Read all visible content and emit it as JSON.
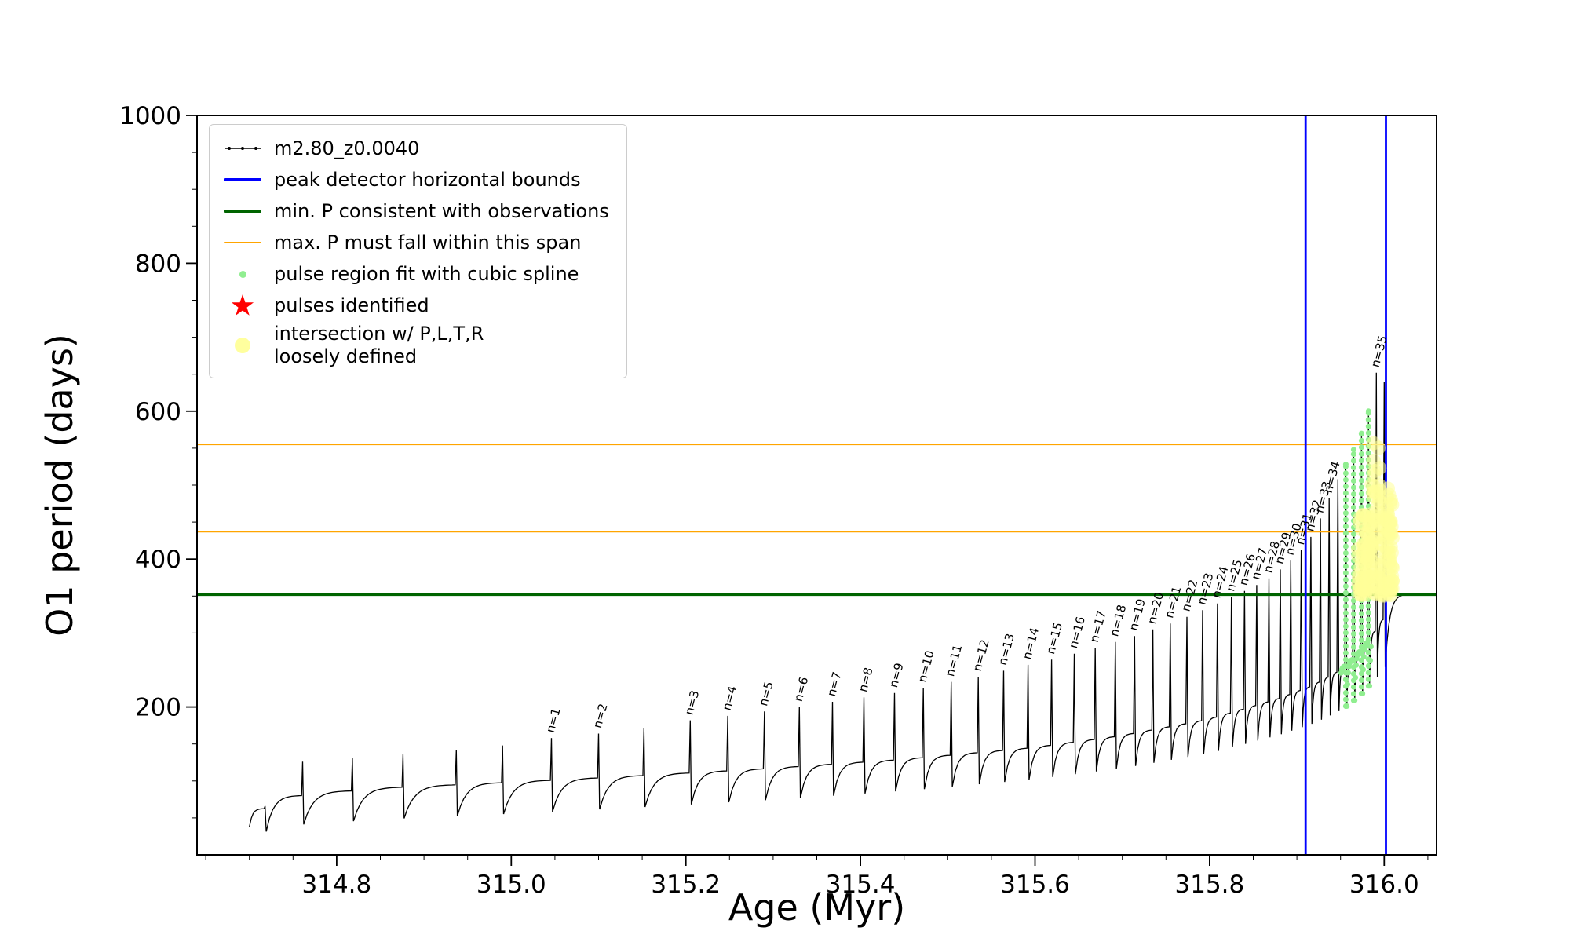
{
  "chart_data": {
    "type": "line",
    "title": "",
    "xlabel": "Age (Myr)",
    "ylabel": "O1 period (days)",
    "xlim": [
      314.64,
      316.06
    ],
    "ylim": [
      0,
      1000
    ],
    "xticks": [
      314.8,
      315.0,
      315.2,
      315.4,
      315.6,
      315.8,
      316.0
    ],
    "xtick_labels": [
      "314.8",
      "315.0",
      "315.2",
      "315.4",
      "315.6",
      "315.8",
      "316.0"
    ],
    "yticks": [
      200,
      400,
      600,
      800,
      1000
    ],
    "ytick_labels": [
      "200",
      "400",
      "600",
      "800",
      "1000"
    ],
    "x_minor_step": 0.05,
    "y_minor_step": 50,
    "grid": false,
    "legend_position": "upper-left",
    "legend": [
      "m2.80_z0.0040",
      "peak detector horizontal bounds",
      "min. P consistent with observations",
      "max. P must fall within this span",
      "pulse region fit with cubic spline",
      "pulses identified",
      "intersection w/ P,L,T,R\nloosely defined"
    ],
    "colors": {
      "series": "#000000",
      "bounds": "#0000FF",
      "min_p": "#006400",
      "max_p": "#FFA500",
      "spline": "#90EE90",
      "pulses": "#FF0000",
      "intersection": "#FFFF99"
    },
    "hlines": [
      {
        "y": 352,
        "color": "#006400",
        "width": 3.5,
        "meaning": "min. P consistent with observations"
      },
      {
        "y": 437,
        "color": "#FFA500",
        "width": 1.8,
        "meaning": "max. P span lower"
      },
      {
        "y": 555,
        "color": "#FFA500",
        "width": 1.8,
        "meaning": "max. P span upper"
      }
    ],
    "vlines": [
      {
        "x": 315.91,
        "color": "#0000FF",
        "width": 2.8,
        "meaning": "peak detector left bound"
      },
      {
        "x": 316.002,
        "color": "#0000FF",
        "width": 2.8,
        "meaning": "peak detector right bound"
      }
    ],
    "curve_start": [
      314.7,
      38
    ],
    "curve_end": [
      316.025,
      352
    ],
    "envelope": [
      [
        314.7,
        55
      ],
      [
        314.76,
        80
      ],
      [
        314.85,
        90
      ],
      [
        315.0,
        98
      ],
      [
        315.15,
        107
      ],
      [
        315.3,
        117
      ],
      [
        315.45,
        129
      ],
      [
        315.6,
        145
      ],
      [
        315.7,
        161
      ],
      [
        315.8,
        183
      ],
      [
        315.88,
        211
      ],
      [
        315.92,
        229
      ],
      [
        315.95,
        249
      ],
      [
        315.97,
        269
      ],
      [
        315.985,
        292
      ],
      [
        316.0,
        318
      ],
      [
        316.03,
        352
      ]
    ],
    "pulses": [
      {
        "age": 314.718,
        "peak": 66,
        "label": null
      },
      {
        "age": 314.761,
        "peak": 126,
        "label": null
      },
      {
        "age": 314.818,
        "peak": 131,
        "label": null
      },
      {
        "age": 314.876,
        "peak": 136,
        "label": null
      },
      {
        "age": 314.937,
        "peak": 142,
        "label": null
      },
      {
        "age": 314.99,
        "peak": 148,
        "label": null
      },
      {
        "age": 315.046,
        "peak": 158,
        "label": "n=1"
      },
      {
        "age": 315.1,
        "peak": 164,
        "label": "n=2"
      },
      {
        "age": 315.152,
        "peak": 171,
        "label": null
      },
      {
        "age": 315.205,
        "peak": 182,
        "label": "n=3"
      },
      {
        "age": 315.248,
        "peak": 188,
        "label": "n=4"
      },
      {
        "age": 315.29,
        "peak": 194,
        "label": "n=5"
      },
      {
        "age": 315.33,
        "peak": 200,
        "label": "n=6"
      },
      {
        "age": 315.368,
        "peak": 207,
        "label": "n=7"
      },
      {
        "age": 315.404,
        "peak": 213,
        "label": "n=8"
      },
      {
        "age": 315.439,
        "peak": 219,
        "label": "n=9"
      },
      {
        "age": 315.472,
        "peak": 226,
        "label": "n=10"
      },
      {
        "age": 315.504,
        "peak": 234,
        "label": "n=11"
      },
      {
        "age": 315.535,
        "peak": 241,
        "label": "n=12"
      },
      {
        "age": 315.564,
        "peak": 249,
        "label": "n=13"
      },
      {
        "age": 315.592,
        "peak": 257,
        "label": "n=14"
      },
      {
        "age": 315.619,
        "peak": 264,
        "label": "n=15"
      },
      {
        "age": 315.645,
        "peak": 272,
        "label": "n=16"
      },
      {
        "age": 315.669,
        "peak": 280,
        "label": "n=17"
      },
      {
        "age": 315.692,
        "peak": 288,
        "label": "n=18"
      },
      {
        "age": 315.714,
        "peak": 296,
        "label": "n=19"
      },
      {
        "age": 315.735,
        "peak": 305,
        "label": "n=20"
      },
      {
        "age": 315.755,
        "peak": 313,
        "label": "n=21"
      },
      {
        "age": 315.774,
        "peak": 322,
        "label": "n=22"
      },
      {
        "age": 315.792,
        "peak": 331,
        "label": "n=23"
      },
      {
        "age": 315.809,
        "peak": 340,
        "label": "n=24"
      },
      {
        "age": 315.825,
        "peak": 349,
        "label": "n=25"
      },
      {
        "age": 315.84,
        "peak": 357,
        "label": "n=26"
      },
      {
        "age": 315.854,
        "peak": 365,
        "label": "n=27"
      },
      {
        "age": 315.868,
        "peak": 374,
        "label": "n=28"
      },
      {
        "age": 315.881,
        "peak": 386,
        "label": "n=29"
      },
      {
        "age": 315.893,
        "peak": 398,
        "label": "n=30"
      },
      {
        "age": 315.905,
        "peak": 412,
        "label": "n=31"
      },
      {
        "age": 315.916,
        "peak": 430,
        "label": "n=32"
      },
      {
        "age": 315.927,
        "peak": 455,
        "label": "n=33"
      },
      {
        "age": 315.937,
        "peak": 482,
        "label": "n=34"
      },
      {
        "age": 315.947,
        "peak": 508,
        "label": null
      },
      {
        "age": 315.956,
        "peak": 528,
        "label": null
      },
      {
        "age": 315.965,
        "peak": 548,
        "label": null
      },
      {
        "age": 315.974,
        "peak": 570,
        "label": null
      },
      {
        "age": 315.982,
        "peak": 600,
        "label": null
      },
      {
        "age": 315.991,
        "peak": 652,
        "label": "n=35"
      },
      {
        "age": 316.0,
        "peak": 640,
        "label": null
      }
    ],
    "green_region": {
      "x_min": 315.95,
      "x_max": 315.985
    },
    "yellow_clusters": [
      {
        "x_min": 315.97,
        "x_max": 315.99,
        "y_min": 350,
        "y_max": 460,
        "count": 80
      },
      {
        "x_min": 315.994,
        "x_max": 316.01,
        "y_min": 350,
        "y_max": 500,
        "count": 80
      },
      {
        "x_min": 315.985,
        "x_max": 315.996,
        "y_min": 460,
        "y_max": 560,
        "count": 18
      }
    ]
  }
}
